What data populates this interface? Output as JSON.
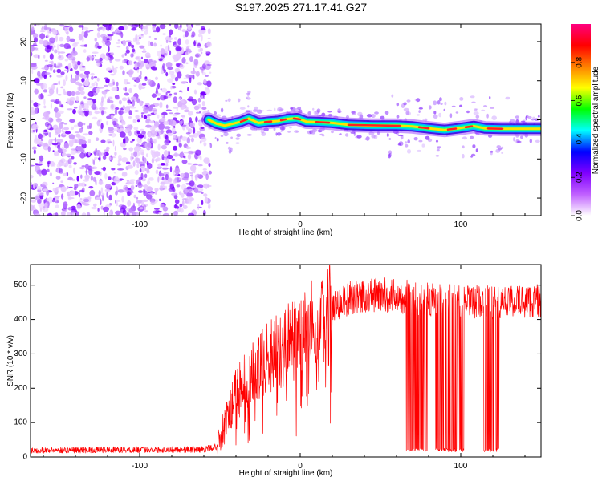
{
  "title": "S197.2025.271.17.41.G27",
  "chart_data": [
    {
      "type": "heatmap",
      "xlabel": "Height of straight line (km)",
      "ylabel": "Frequency (Hz)",
      "xlim": [
        -168,
        150
      ],
      "ylim": [
        -24.5,
        24.5
      ],
      "x_ticks": [
        -100,
        0,
        100
      ],
      "y_ticks": [
        -20,
        -10,
        0,
        10,
        20
      ],
      "noise_region_x": [
        -168,
        -56
      ],
      "signal_trace": [
        {
          "x": -57,
          "f": 0.0
        },
        {
          "x": -52,
          "f": -1.0
        },
        {
          "x": -47,
          "f": -1.5
        },
        {
          "x": -42,
          "f": -1.0
        },
        {
          "x": -37,
          "f": -0.5
        },
        {
          "x": -32,
          "f": 0.3
        },
        {
          "x": -26,
          "f": -0.8
        },
        {
          "x": -20,
          "f": -0.5
        },
        {
          "x": -14,
          "f": -0.3
        },
        {
          "x": -8,
          "f": 0.2
        },
        {
          "x": -2,
          "f": 0.4
        },
        {
          "x": 4,
          "f": -0.5
        },
        {
          "x": 12,
          "f": -0.6
        },
        {
          "x": 20,
          "f": -0.8
        },
        {
          "x": 30,
          "f": -1.3
        },
        {
          "x": 45,
          "f": -1.5
        },
        {
          "x": 60,
          "f": -1.5
        },
        {
          "x": 70,
          "f": -1.7
        },
        {
          "x": 80,
          "f": -2.2
        },
        {
          "x": 90,
          "f": -2.6
        },
        {
          "x": 100,
          "f": -2.1
        },
        {
          "x": 108,
          "f": -1.6
        },
        {
          "x": 115,
          "f": -2.2
        },
        {
          "x": 125,
          "f": -2.3
        },
        {
          "x": 150,
          "f": -2.3
        }
      ],
      "colorbar": {
        "label": "Normalized spectral amplitude",
        "range": [
          0,
          1
        ],
        "ticks": [
          "0.0",
          "0.2",
          "0.4",
          "0.6",
          "0.8"
        ],
        "colors": [
          "#ffffff",
          "#c060ff",
          "#8000ff",
          "#0000ff",
          "#00ffff",
          "#00ff00",
          "#ffff00",
          "#ff8000",
          "#ff0000",
          "#ff0080"
        ]
      }
    },
    {
      "type": "line",
      "color": "#ff0000",
      "xlabel": "Height of straight line (km)",
      "ylabel": "SNR (10 * v/v)",
      "xlim": [
        -168,
        150
      ],
      "ylim": [
        0,
        560
      ],
      "x_ticks": [
        -100,
        0,
        100
      ],
      "y_ticks": [
        0,
        100,
        200,
        300,
        400,
        500
      ],
      "trend": [
        {
          "x": -168,
          "y": 20
        },
        {
          "x": -60,
          "y": 22
        },
        {
          "x": -52,
          "y": 30
        },
        {
          "x": -45,
          "y": 120
        },
        {
          "x": -38,
          "y": 210
        },
        {
          "x": -30,
          "y": 240
        },
        {
          "x": -20,
          "y": 290
        },
        {
          "x": -10,
          "y": 320
        },
        {
          "x": 0,
          "y": 360
        },
        {
          "x": 10,
          "y": 400
        },
        {
          "x": 20,
          "y": 440
        },
        {
          "x": 30,
          "y": 460
        },
        {
          "x": 40,
          "y": 470
        },
        {
          "x": 60,
          "y": 470
        },
        {
          "x": 80,
          "y": 460
        },
        {
          "x": 100,
          "y": 450
        },
        {
          "x": 120,
          "y": 450
        },
        {
          "x": 150,
          "y": 455
        }
      ],
      "dropouts": [
        {
          "x0": 66,
          "x1": 80,
          "y_low": 20
        },
        {
          "x0": 84,
          "x1": 102,
          "y_low": 20
        },
        {
          "x0": 114,
          "x1": 124,
          "y_low": 20
        }
      ]
    }
  ]
}
